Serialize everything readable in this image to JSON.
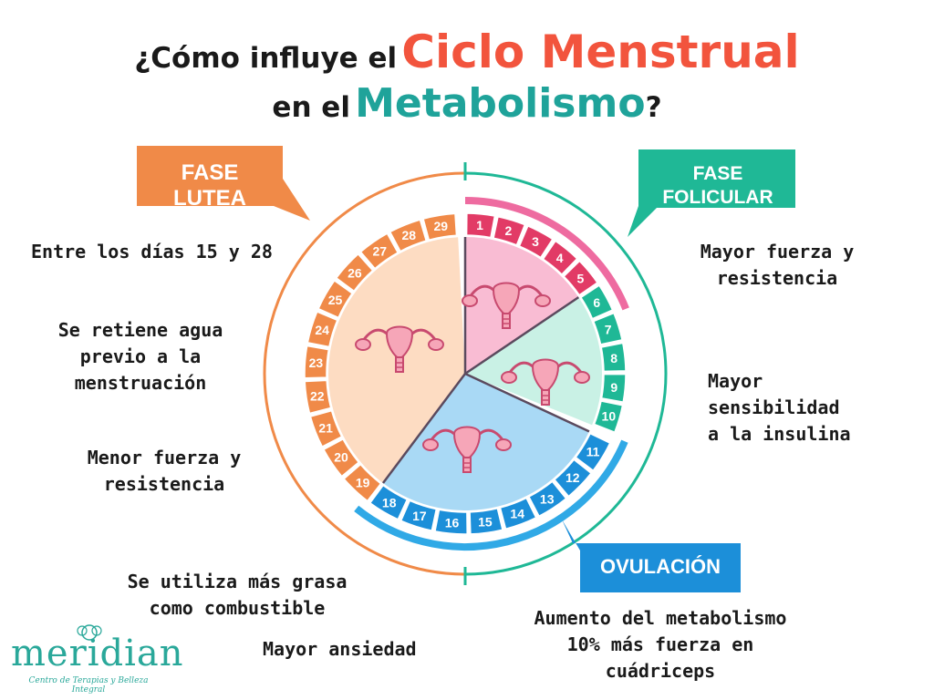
{
  "title": {
    "line1_prefix": "¿Cómo influye el",
    "line1_highlight": "Ciclo Menstrual",
    "line2_prefix": "en el",
    "line2_highlight": "Metabolismo",
    "line2_suffix": "?"
  },
  "phases": {
    "lutea": {
      "label_line1": "FASE",
      "label_line2": "LUTEA",
      "color": "#f08a48",
      "fill": "#fddcc2",
      "day_start": 19,
      "day_end": 29
    },
    "folicular": {
      "label_line1": "FASE",
      "label_line2": "FOLICULAR",
      "color": "#1fb896",
      "fill": "#c9f1e5",
      "day_start": 6,
      "day_end": 10
    },
    "menstruacion": {
      "color": "#e23b66",
      "fill": "#f9bcd3",
      "day_start": 1,
      "day_end": 5
    },
    "ovulacion": {
      "label": "OVULACIÓN",
      "color": "#1c8fd9",
      "fill": "#a9d9f5",
      "day_start": 11,
      "day_end": 18
    }
  },
  "days": [
    "1",
    "2",
    "3",
    "4",
    "5",
    "6",
    "7",
    "8",
    "9",
    "10",
    "11",
    "12",
    "13",
    "14",
    "15",
    "16",
    "17",
    "18",
    "19",
    "20",
    "21",
    "22",
    "23",
    "24",
    "25",
    "26",
    "27",
    "28",
    "29"
  ],
  "notes_left": {
    "n1": "Entre los días 15 y 28",
    "n2_l1": "Se retiene agua",
    "n2_l2": "previo a la",
    "n2_l3": "menstruación",
    "n3_l1": "Menor fuerza y",
    "n3_l2": "resistencia",
    "n4_l1": "Se utiliza más grasa",
    "n4_l2": "como combustible",
    "n5": "Mayor ansiedad"
  },
  "notes_right": {
    "n1_l1": "Mayor fuerza y",
    "n1_l2": "resistencia",
    "n2_l1": "Mayor",
    "n2_l2": "sensibilidad",
    "n2_l3": "a la insulina",
    "n3_l1": "Aumento del metabolismo",
    "n3_l2": "10% más fuerza en",
    "n3_l3": "cuádriceps"
  },
  "logo": {
    "name": "meridian",
    "subtitle": "Centro de Terapias y Belleza Integral",
    "color": "#2aa89a"
  },
  "icons": [
    "uterus-icon"
  ]
}
